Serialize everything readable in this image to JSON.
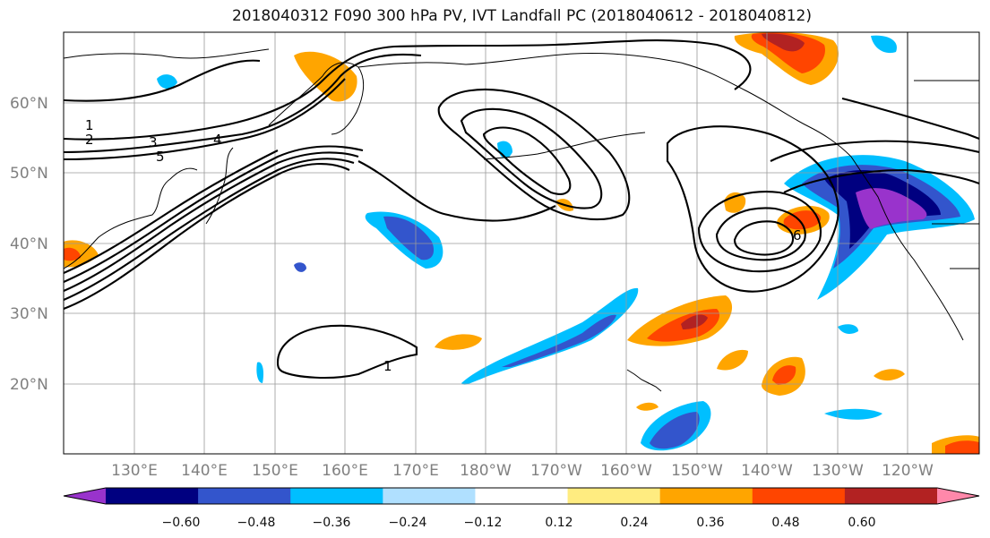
{
  "title": "2018040312 F090 300 hPa PV, IVT Landfall PC (2018040612 - 2018040812)",
  "lat_labels": [
    "60°N",
    "50°N",
    "40°N",
    "30°N",
    "20°N"
  ],
  "lon_labels": [
    "130°E",
    "140°E",
    "150°E",
    "160°E",
    "170°E",
    "180°W",
    "170°W",
    "160°W",
    "150°W",
    "140°W",
    "130°W",
    "120°W"
  ],
  "contour_labels": [
    "1",
    "2",
    "3",
    "4",
    "5",
    "6",
    "1"
  ],
  "colorbar": {
    "tick_labels": [
      "−0.60",
      "−0.48",
      "−0.36",
      "−0.24",
      "−0.12",
      "0.12",
      "0.24",
      "0.36",
      "0.48",
      "0.60"
    ],
    "colors": [
      "#9933cc",
      "#000080",
      "#3355cc",
      "#00bfff",
      "#b0e0ff",
      "#ffffff",
      "#ffec80",
      "#ffa500",
      "#ff4500",
      "#b22222",
      "#ff88aa"
    ]
  },
  "chart_data": {
    "type": "map",
    "title": "2018040312 F090 300 hPa PV, IVT Landfall PC (2018040612 - 2018040812)",
    "lat_ticks": [
      60,
      50,
      40,
      30,
      20
    ],
    "lon_ticks": [
      "130°E",
      "140°E",
      "150°E",
      "160°E",
      "170°E",
      "180°W",
      "170°W",
      "160°W",
      "150°W",
      "140°W",
      "130°W",
      "120°W"
    ],
    "colorbar_bounds": [
      -0.6,
      -0.48,
      -0.36,
      -0.24,
      -0.12,
      0.12,
      0.24,
      0.36,
      0.48,
      0.6
    ],
    "contour_levels": [
      1,
      2,
      3,
      4,
      5,
      6
    ],
    "grid": true
  }
}
